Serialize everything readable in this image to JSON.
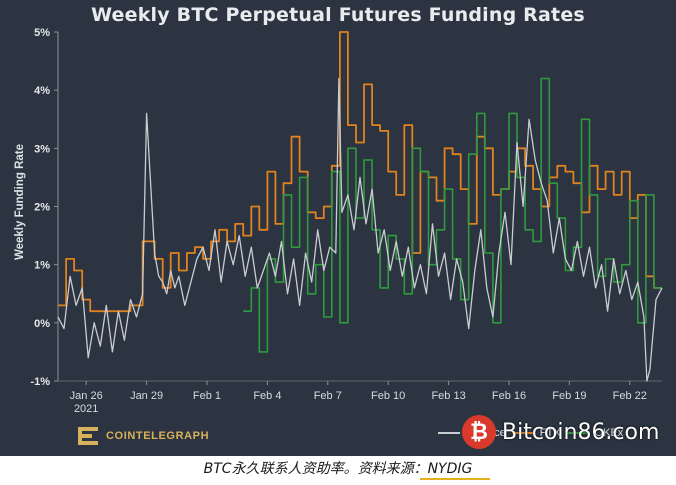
{
  "title": "Weekly BTC Perpetual Futures Funding Rates",
  "caption": "BTC永久联系人资助率。资料来源：NYDIG",
  "brand": {
    "name": "COINTELEGRAPH",
    "icon": "cointelegraph-logo-icon"
  },
  "watermark": {
    "text": "Bitcoin86.com",
    "icon": "bitcoin-logo-icon"
  },
  "legend": [
    "Binance",
    "FTX",
    "OKEx"
  ],
  "colors": {
    "background": "#2b3440",
    "binance": "#c9ccd1",
    "ftx": "#e0821f",
    "okex": "#2f9a3e",
    "accent": "#d7b15b"
  },
  "chart_data": {
    "type": "line",
    "title": "Weekly BTC Perpetual Futures Funding Rates",
    "ylabel": "Weekly Funding Rate",
    "xlabel": "",
    "ylim": [
      -1,
      5
    ],
    "yticks": [
      "5%",
      "4%",
      "3%",
      "2%",
      "1%",
      "0%",
      "-1%"
    ],
    "xlim": [
      0,
      30
    ],
    "xtick_labels": [
      {
        "x": 1.4,
        "label": "Jan 26",
        "sub": "2021"
      },
      {
        "x": 4.4,
        "label": "Jan 29"
      },
      {
        "x": 7.4,
        "label": "Feb 1"
      },
      {
        "x": 10.4,
        "label": "Feb 4"
      },
      {
        "x": 13.4,
        "label": "Feb 7"
      },
      {
        "x": 16.4,
        "label": "Feb 10"
      },
      {
        "x": 19.4,
        "label": "Feb 13"
      },
      {
        "x": 22.4,
        "label": "Feb 16"
      },
      {
        "x": 25.4,
        "label": "Feb 19"
      },
      {
        "x": 28.4,
        "label": "Feb 22"
      }
    ],
    "grid": false,
    "legend_position": "bottom-right",
    "series": [
      {
        "name": "FTX",
        "step": true,
        "x": [
          0,
          0.4,
          0.8,
          1.2,
          1.6,
          2.2,
          3.0,
          3.6,
          4.2,
          4.8,
          5.2,
          5.6,
          6.0,
          6.4,
          6.8,
          7.2,
          7.6,
          8.0,
          8.4,
          8.8,
          9.2,
          9.6,
          10.0,
          10.4,
          10.8,
          11.2,
          11.6,
          12.0,
          12.4,
          12.8,
          13.2,
          13.6,
          14.0,
          14.4,
          14.8,
          15.2,
          15.6,
          16.0,
          16.4,
          16.8,
          17.2,
          17.6,
          18.0,
          18.4,
          18.8,
          19.2,
          19.6,
          20.0,
          20.4,
          20.8,
          21.2,
          21.6,
          22.0,
          22.4,
          22.8,
          23.2,
          23.6,
          24.0,
          24.4,
          24.8,
          25.2,
          25.6,
          26.0,
          26.4,
          26.8,
          27.2,
          27.6,
          28.0,
          28.4,
          28.8,
          29.2,
          29.6,
          30.0
        ],
        "y": [
          0.3,
          1.1,
          0.9,
          0.4,
          0.2,
          0.2,
          0.2,
          0.3,
          1.4,
          1.1,
          0.6,
          1.2,
          0.9,
          1.2,
          1.3,
          1.1,
          1.4,
          1.6,
          1.4,
          1.7,
          1.5,
          2.0,
          1.6,
          2.6,
          1.7,
          2.4,
          3.2,
          2.6,
          1.9,
          1.8,
          2.0,
          2.7,
          5.0,
          3.4,
          3.1,
          4.1,
          3.4,
          3.3,
          2.6,
          2.2,
          3.4,
          1.2,
          2.6,
          2.5,
          2.1,
          3.0,
          2.9,
          2.3,
          1.7,
          3.2,
          3.0,
          2.2,
          2.3,
          2.6,
          3.0,
          2.7,
          2.3,
          2.0,
          2.5,
          2.7,
          2.6,
          2.4,
          1.9,
          2.7,
          2.3,
          2.6,
          2.2,
          2.6,
          1.8,
          2.2,
          0.8,
          0.6,
          0.6
        ]
      },
      {
        "name": "OKEx",
        "step": true,
        "x": [
          9.2,
          9.6,
          10.0,
          10.4,
          10.8,
          11.2,
          11.6,
          12.0,
          12.4,
          12.8,
          13.2,
          13.6,
          14.0,
          14.4,
          14.8,
          15.2,
          15.6,
          16.0,
          16.4,
          16.8,
          17.2,
          17.6,
          18.0,
          18.4,
          18.8,
          19.2,
          19.6,
          20.0,
          20.4,
          20.8,
          21.2,
          21.6,
          22.0,
          22.4,
          22.8,
          23.2,
          23.6,
          24.0,
          24.4,
          24.8,
          25.2,
          25.6,
          26.0,
          26.4,
          26.8,
          27.2,
          27.6,
          28.0,
          28.4,
          28.8,
          29.2,
          29.6,
          30.0
        ],
        "y": [
          0.2,
          0.6,
          -0.5,
          1.1,
          0.7,
          2.2,
          1.3,
          2.5,
          0.5,
          1.0,
          0.1,
          2.6,
          0.0,
          3.0,
          1.8,
          2.8,
          1.6,
          0.6,
          1.5,
          1.1,
          0.5,
          3.0,
          2.6,
          1.0,
          1.6,
          2.3,
          1.1,
          0.4,
          2.9,
          3.6,
          1.2,
          0.0,
          2.3,
          3.6,
          2.5,
          1.6,
          1.4,
          4.2,
          2.4,
          1.8,
          0.9,
          1.3,
          3.5,
          2.2,
          0.8,
          1.1,
          0.7,
          1.0,
          2.1,
          0.0,
          2.2,
          0.6,
          0.6
        ]
      },
      {
        "name": "Binance",
        "step": false,
        "x": [
          0.0,
          0.3,
          0.6,
          0.9,
          1.2,
          1.5,
          1.8,
          2.1,
          2.4,
          2.7,
          3.0,
          3.3,
          3.6,
          3.9,
          4.2,
          4.4,
          4.6,
          4.8,
          5.0,
          5.2,
          5.4,
          5.6,
          5.8,
          6.0,
          6.3,
          6.6,
          6.9,
          7.2,
          7.5,
          7.8,
          8.1,
          8.4,
          8.7,
          9.0,
          9.3,
          9.6,
          9.9,
          10.2,
          10.5,
          10.8,
          11.1,
          11.4,
          11.7,
          12.0,
          12.3,
          12.6,
          12.9,
          13.2,
          13.5,
          13.8,
          13.95,
          14.1,
          14.4,
          14.7,
          15.0,
          15.3,
          15.6,
          15.9,
          16.2,
          16.5,
          16.8,
          17.1,
          17.4,
          17.7,
          18.0,
          18.3,
          18.6,
          18.9,
          19.2,
          19.5,
          19.8,
          20.1,
          20.4,
          20.7,
          21.0,
          21.3,
          21.6,
          21.9,
          22.2,
          22.5,
          22.8,
          23.1,
          23.4,
          23.7,
          24.0,
          24.3,
          24.6,
          24.9,
          25.2,
          25.5,
          25.8,
          26.1,
          26.4,
          26.7,
          27.0,
          27.3,
          27.6,
          27.9,
          28.2,
          28.5,
          28.8,
          29.1,
          29.25,
          29.4,
          29.7,
          30.0
        ],
        "y": [
          0.1,
          -0.1,
          0.8,
          0.3,
          0.6,
          -0.6,
          0.0,
          -0.4,
          0.3,
          -0.5,
          0.2,
          -0.3,
          0.4,
          0.1,
          0.5,
          3.6,
          2.4,
          1.2,
          0.8,
          0.7,
          0.5,
          0.9,
          0.6,
          0.8,
          0.3,
          0.7,
          1.1,
          1.3,
          0.9,
          1.6,
          0.7,
          1.4,
          1.0,
          1.5,
          0.8,
          1.3,
          0.6,
          0.9,
          1.2,
          0.8,
          1.4,
          0.5,
          1.1,
          0.3,
          1.2,
          0.7,
          1.6,
          0.9,
          1.3,
          1.2,
          4.2,
          1.9,
          2.2,
          1.6,
          2.5,
          1.7,
          2.3,
          1.2,
          1.6,
          0.9,
          1.4,
          0.8,
          1.3,
          0.6,
          1.0,
          0.5,
          1.7,
          0.8,
          1.2,
          0.4,
          1.1,
          0.7,
          -0.1,
          0.9,
          1.6,
          0.6,
          0.1,
          1.2,
          1.9,
          1.0,
          3.1,
          2.0,
          3.5,
          2.8,
          2.4,
          2.1,
          1.2,
          1.8,
          1.1,
          0.9,
          1.4,
          0.8,
          1.3,
          0.6,
          1.0,
          0.2,
          1.1,
          0.5,
          0.9,
          0.4,
          0.7,
          0.1,
          -1.0,
          -0.8,
          0.4,
          0.6
        ]
      }
    ]
  }
}
